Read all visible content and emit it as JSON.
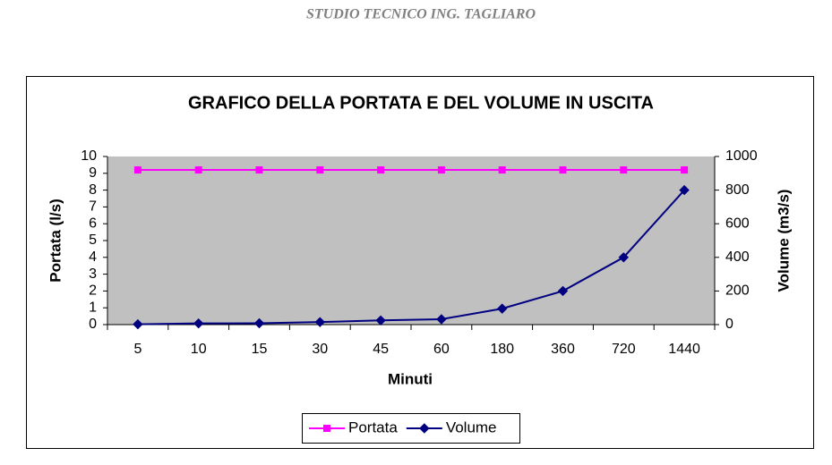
{
  "header": "STUDIO TECNICO ING. TAGLIARO",
  "chart_data": {
    "type": "line",
    "title": "GRAFICO DELLA PORTATA E DEL VOLUME IN USCITA",
    "x_label": "Minuti",
    "y_label": "Portata (l/s)",
    "y2_label": "Volume (m3/s)",
    "categories": [
      "5",
      "10",
      "15",
      "30",
      "45",
      "60",
      "180",
      "360",
      "720",
      "1440"
    ],
    "series": [
      {
        "name": "Portata",
        "color": "#ff00ff",
        "marker": "square",
        "values": [
          9.2,
          9.2,
          9.2,
          9.2,
          9.2,
          9.2,
          9.2,
          9.2,
          9.2,
          9.2
        ]
      },
      {
        "name": "Volume",
        "color": "#000080",
        "marker": "diamond",
        "axis": "y2",
        "values": [
          2,
          7,
          8,
          15,
          25,
          32,
          95,
          200,
          400,
          800
        ]
      }
    ],
    "ylim": [
      0,
      10
    ],
    "yticks": [
      0,
      1,
      2,
      3,
      4,
      5,
      6,
      7,
      8,
      9,
      10
    ],
    "y2lim": [
      0,
      1000
    ],
    "y2ticks": [
      0,
      200,
      400,
      600,
      800,
      1000
    ],
    "plot_background": "#c0c0c0",
    "legend": "bottom"
  }
}
